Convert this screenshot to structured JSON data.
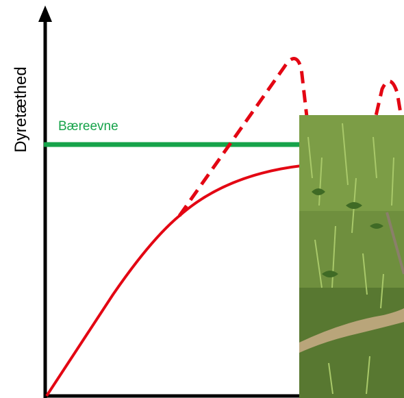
{
  "y_axis_label": "Dyretæthed",
  "carrying_capacity_label": "Bæreevne"
}
